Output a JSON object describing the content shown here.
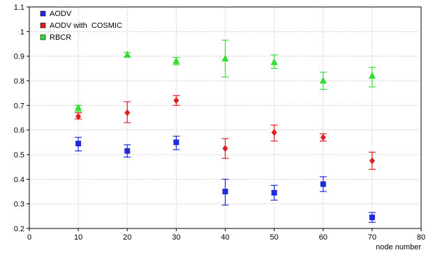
{
  "chart_data": {
    "type": "scatter",
    "title": "",
    "xlabel": "node number",
    "ylabel": "",
    "xlim": [
      0,
      80
    ],
    "ylim": [
      0.2,
      1.1
    ],
    "xticks": [
      "0",
      "10",
      "20",
      "30",
      "40",
      "50",
      "60",
      "70",
      "80"
    ],
    "yticks": [
      "0.2",
      "0.3",
      "0.4",
      "0.5",
      "0.6",
      "0.7",
      "0.8",
      "0.9",
      "1",
      "1.1"
    ],
    "grid": true,
    "legend_position": "top-left",
    "series": [
      {
        "name": "AODV",
        "color": "#1f2bd8",
        "marker": "square",
        "x": [
          10,
          20,
          30,
          40,
          50,
          60,
          70
        ],
        "y": [
          0.545,
          0.515,
          0.55,
          0.35,
          0.345,
          0.38,
          0.245
        ],
        "err_low": [
          0.515,
          0.49,
          0.52,
          0.295,
          0.315,
          0.35,
          0.225
        ],
        "err_high": [
          0.57,
          0.54,
          0.575,
          0.4,
          0.375,
          0.41,
          0.265
        ]
      },
      {
        "name": "AODV with  COSMIC",
        "color": "#e02020",
        "marker": "diamond",
        "x": [
          10,
          20,
          30,
          40,
          50,
          60,
          70
        ],
        "y": [
          0.655,
          0.67,
          0.72,
          0.525,
          0.59,
          0.57,
          0.475
        ],
        "err_low": [
          0.645,
          0.63,
          0.7,
          0.485,
          0.555,
          0.555,
          0.44
        ],
        "err_high": [
          0.67,
          0.715,
          0.74,
          0.565,
          0.62,
          0.585,
          0.51
        ]
      },
      {
        "name": "RBCR",
        "color": "#33dd33",
        "marker": "triangle",
        "x": [
          10,
          20,
          30,
          40,
          50,
          60,
          70
        ],
        "y": [
          0.69,
          0.905,
          0.88,
          0.89,
          0.875,
          0.8,
          0.82
        ],
        "err_low": [
          0.675,
          0.895,
          0.865,
          0.815,
          0.85,
          0.765,
          0.775
        ],
        "err_high": [
          0.7,
          0.915,
          0.895,
          0.965,
          0.905,
          0.835,
          0.855
        ]
      }
    ]
  }
}
